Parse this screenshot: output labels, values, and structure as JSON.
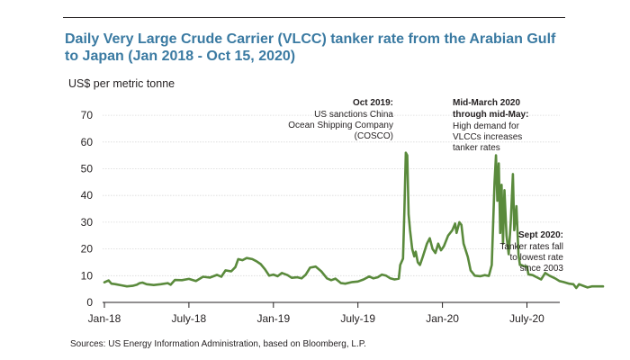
{
  "chart_data": {
    "type": "line",
    "title": "Daily Very Large Crude Carrier (VLCC) tanker rate from the Arabian Gulf to Japan (Jan 2018 - Oct 15, 2020)",
    "ylabel": "US$ per metric tonne",
    "xlabel": "",
    "ylim": [
      0,
      70
    ],
    "yticks": [
      0,
      10,
      20,
      30,
      40,
      50,
      60,
      70
    ],
    "xticks": [
      "Jan-18",
      "July-18",
      "Jan-19",
      "July-19",
      "Jan-20",
      "July-20"
    ],
    "color": "#5a8a3c",
    "x_unit": "months since Jan 2018",
    "series": [
      {
        "name": "VLCC tanker rate",
        "points": [
          [
            0.0,
            7.5
          ],
          [
            0.3,
            8.2
          ],
          [
            0.5,
            7.0
          ],
          [
            0.8,
            6.8
          ],
          [
            1.2,
            6.4
          ],
          [
            1.6,
            6.0
          ],
          [
            2.0,
            6.2
          ],
          [
            2.3,
            6.6
          ],
          [
            2.5,
            7.2
          ],
          [
            2.7,
            7.4
          ],
          [
            3.0,
            6.8
          ],
          [
            3.5,
            6.5
          ],
          [
            4.0,
            6.8
          ],
          [
            4.5,
            7.2
          ],
          [
            4.7,
            6.6
          ],
          [
            5.0,
            8.4
          ],
          [
            5.5,
            8.3
          ],
          [
            6.0,
            8.8
          ],
          [
            6.5,
            8.0
          ],
          [
            7.0,
            9.6
          ],
          [
            7.5,
            9.3
          ],
          [
            8.0,
            10.3
          ],
          [
            8.3,
            9.6
          ],
          [
            8.6,
            12.0
          ],
          [
            9.0,
            11.6
          ],
          [
            9.3,
            13.2
          ],
          [
            9.5,
            16.2
          ],
          [
            9.8,
            15.8
          ],
          [
            10.1,
            16.6
          ],
          [
            10.5,
            16.2
          ],
          [
            10.8,
            15.4
          ],
          [
            11.1,
            14.3
          ],
          [
            11.4,
            12.4
          ],
          [
            11.7,
            10.0
          ],
          [
            12.0,
            10.4
          ],
          [
            12.3,
            9.8
          ],
          [
            12.6,
            11.0
          ],
          [
            13.0,
            10.2
          ],
          [
            13.3,
            9.2
          ],
          [
            13.7,
            9.4
          ],
          [
            14.0,
            9.0
          ],
          [
            14.3,
            10.4
          ],
          [
            14.6,
            13.0
          ],
          [
            15.0,
            13.4
          ],
          [
            15.4,
            11.6
          ],
          [
            15.8,
            9.0
          ],
          [
            16.1,
            8.3
          ],
          [
            16.4,
            8.9
          ],
          [
            16.8,
            7.2
          ],
          [
            17.1,
            7.0
          ],
          [
            17.6,
            7.6
          ],
          [
            18.0,
            7.8
          ],
          [
            18.4,
            8.6
          ],
          [
            18.8,
            9.7
          ],
          [
            19.1,
            9.0
          ],
          [
            19.4,
            9.4
          ],
          [
            19.7,
            10.4
          ],
          [
            20.0,
            10.0
          ],
          [
            20.3,
            9.0
          ],
          [
            20.6,
            8.6
          ],
          [
            20.9,
            8.9
          ],
          [
            21.0,
            14.0
          ],
          [
            21.2,
            16.4
          ],
          [
            21.3,
            34.0
          ],
          [
            21.4,
            56.0
          ],
          [
            21.5,
            55.0
          ],
          [
            21.6,
            33.0
          ],
          [
            21.7,
            27.0
          ],
          [
            21.85,
            20.0
          ],
          [
            22.0,
            17.2
          ],
          [
            22.1,
            19.0
          ],
          [
            22.25,
            15.0
          ],
          [
            22.4,
            14.0
          ],
          [
            22.6,
            17.0
          ],
          [
            22.9,
            22.0
          ],
          [
            23.1,
            24.0
          ],
          [
            23.3,
            20.0
          ],
          [
            23.5,
            18.5
          ],
          [
            23.7,
            22.0
          ],
          [
            23.9,
            19.5
          ],
          [
            24.1,
            21.0
          ],
          [
            24.4,
            25.0
          ],
          [
            24.7,
            27.0
          ],
          [
            24.9,
            29.5
          ],
          [
            25.0,
            26.0
          ],
          [
            25.2,
            30.0
          ],
          [
            25.35,
            29.0
          ],
          [
            25.5,
            22.0
          ],
          [
            25.8,
            17.0
          ],
          [
            26.0,
            12.0
          ],
          [
            26.3,
            10.0
          ],
          [
            26.7,
            9.8
          ],
          [
            27.0,
            10.2
          ],
          [
            27.3,
            9.9
          ],
          [
            27.5,
            14.0
          ],
          [
            27.7,
            45.0
          ],
          [
            27.8,
            55.0
          ],
          [
            27.9,
            38.0
          ],
          [
            28.0,
            52.0
          ],
          [
            28.1,
            26.0
          ],
          [
            28.2,
            44.0
          ],
          [
            28.3,
            22.0
          ],
          [
            28.4,
            42.0
          ],
          [
            28.55,
            25.0
          ],
          [
            28.7,
            18.0
          ],
          [
            28.85,
            30.0
          ],
          [
            29.0,
            48.0
          ],
          [
            29.1,
            27.0
          ],
          [
            29.25,
            36.0
          ],
          [
            29.4,
            18.0
          ],
          [
            29.5,
            14.0
          ],
          [
            29.6,
            14.0
          ],
          [
            29.8,
            13.5
          ],
          [
            30.0,
            13.5
          ],
          [
            30.1,
            10.5
          ],
          [
            30.4,
            10.2
          ],
          [
            30.7,
            9.4
          ],
          [
            31.0,
            8.6
          ],
          [
            31.3,
            11.0
          ],
          [
            31.6,
            10.0
          ],
          [
            32.0,
            9.0
          ],
          [
            32.3,
            8.0
          ],
          [
            32.6,
            7.6
          ],
          [
            33.0,
            7.0
          ],
          [
            33.3,
            6.8
          ],
          [
            33.5,
            5.4
          ],
          [
            33.7,
            6.8
          ],
          [
            34.0,
            6.2
          ],
          [
            34.3,
            5.6
          ],
          [
            34.6,
            6.0
          ],
          [
            35.0,
            6.0
          ],
          [
            35.4,
            6.0
          ]
        ]
      }
    ],
    "annotations": [
      {
        "bold": "Oct 2019:",
        "lines": [
          "US sanctions China",
          "Ocean Shipping Company",
          "(COSCO)"
        ]
      },
      {
        "bold": "Mid-March 2020",
        "bold2": "through mid-May:",
        "lines": [
          "High demand for",
          "VLCCs increases",
          "tanker rates"
        ]
      },
      {
        "bold": "Sept 2020:",
        "lines": [
          "Tanker rates fall",
          "to lowest rate",
          "since 2003"
        ]
      }
    ]
  },
  "source": "Sources: US Energy Information Administration, based on Bloomberg, L.P."
}
